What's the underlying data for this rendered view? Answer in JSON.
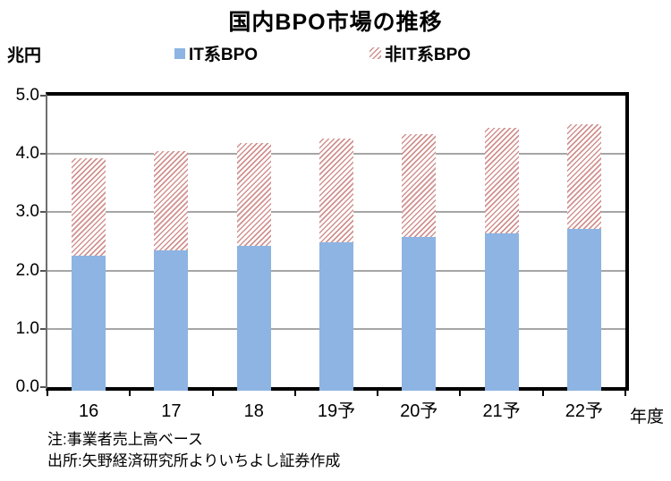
{
  "chart_data": {
    "type": "bar",
    "stacked": true,
    "title": "国内BPO市場の推移",
    "unit_label": "兆円",
    "x_axis_suffix": "年度",
    "categories": [
      "16",
      "17",
      "18",
      "19予",
      "20予",
      "21予",
      "22予"
    ],
    "series": [
      {
        "name": "IT系BPO",
        "style": "solid",
        "color": "#8DB4E2",
        "values": [
          2.26,
          2.35,
          2.42,
          2.48,
          2.57,
          2.64,
          2.71
        ]
      },
      {
        "name": "非IT系BPO",
        "style": "hatch",
        "color": "#D09290",
        "values": [
          1.67,
          1.7,
          1.76,
          1.78,
          1.77,
          1.81,
          1.8
        ]
      }
    ],
    "totals": [
      3.93,
      4.05,
      4.18,
      4.26,
      4.34,
      4.45,
      4.51
    ],
    "ylim": [
      0,
      5
    ],
    "y_ticks": [
      "0.0",
      "1.0",
      "2.0",
      "3.0",
      "4.0",
      "5.0"
    ],
    "grid": true,
    "legend_position": "top"
  },
  "notes": {
    "note": "注:事業者売上高ベース",
    "source": "出所:矢野経済研究所よりいちよし証券作成"
  }
}
